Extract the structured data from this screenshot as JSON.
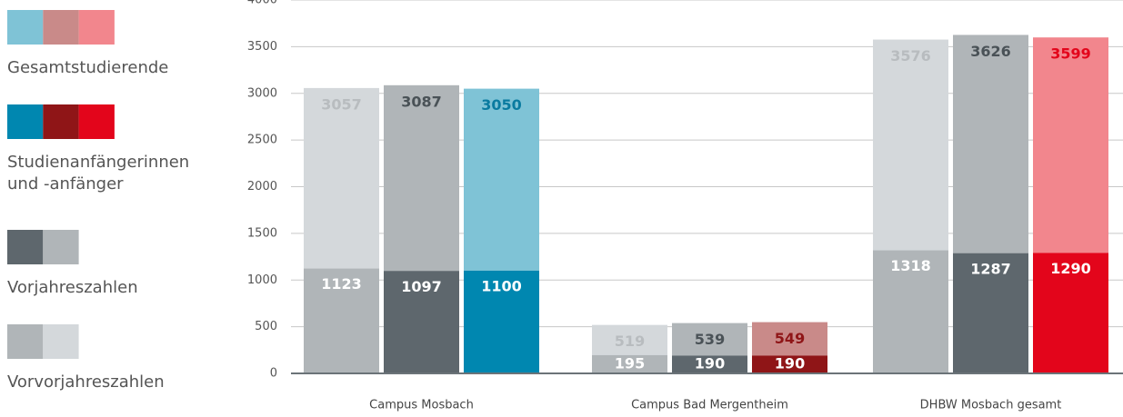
{
  "chart_data": {
    "type": "bar",
    "categories": [
      "Campus Mosbach",
      "Campus Bad Mergentheim",
      "DHBW Mosbach gesamt"
    ],
    "ylim": [
      0,
      4000
    ],
    "yticks": [
      0,
      500,
      1000,
      1500,
      2000,
      2500,
      3000,
      3500,
      4000
    ],
    "grid": true,
    "legend": [
      {
        "lines": [
          "Gesamtstudierende"
        ],
        "colors": [
          "#7fc3d6",
          "#c98a89",
          "#f2868d"
        ]
      },
      {
        "lines": [
          "Studienanfängerinnen",
          "und -anfänger"
        ],
        "colors": [
          "#0087b0",
          "#8f1517",
          "#e3051b"
        ]
      },
      {
        "lines": [
          "Vorjahreszahlen"
        ],
        "colors": [
          "#5e676d",
          "#b0b5b8"
        ]
      },
      {
        "lines": [
          "Vorvorjahreszahlen"
        ],
        "colors": [
          "#b0b5b8",
          "#d4d8db"
        ]
      }
    ],
    "series": [
      {
        "values": [
          3057,
          519,
          3576
        ],
        "new_values": [
          1123,
          195,
          1318
        ],
        "colors": [
          "#d4d8db",
          "#d4d8db",
          "#d4d8db"
        ],
        "new_colors": [
          "#b0b5b8",
          "#b0b5b8",
          "#b0b5b8"
        ],
        "label_colors": [
          "#b8bcbf",
          "#b8bcbf",
          "#b8bcbf"
        ]
      },
      {
        "values": [
          3087,
          539,
          3626
        ],
        "new_values": [
          1097,
          190,
          1287
        ],
        "colors": [
          "#b0b5b8",
          "#b0b5b8",
          "#b0b5b8"
        ],
        "new_colors": [
          "#5e676d",
          "#5e676d",
          "#5e676d"
        ],
        "label_colors": [
          "#4a5257",
          "#4a5257",
          "#4a5257"
        ]
      },
      {
        "values": [
          3050,
          549,
          3599
        ],
        "new_values": [
          1100,
          190,
          1290
        ],
        "colors": [
          "#7fc3d6",
          "#c98a89",
          "#f2868d"
        ],
        "new_colors": [
          "#0087b0",
          "#8f1517",
          "#e3051b"
        ],
        "label_colors": [
          "#0a7ba0",
          "#8f1517",
          "#e3051b"
        ]
      }
    ]
  }
}
